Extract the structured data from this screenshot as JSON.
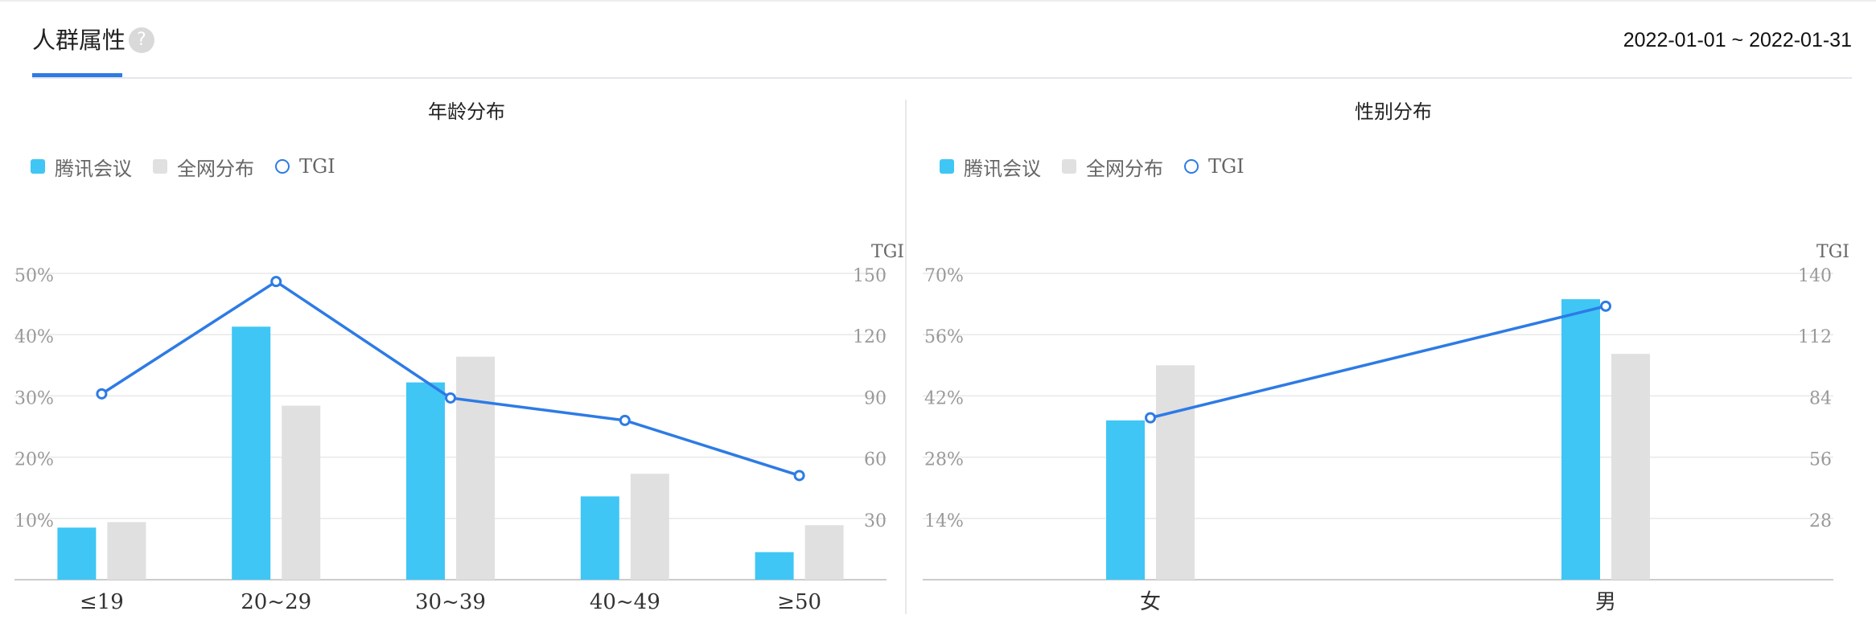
{
  "header": {
    "title": "人群属性",
    "help_icon": "?",
    "date_range": "2022-01-01 ~ 2022-01-31"
  },
  "colors": {
    "primary": "#3fc6f5",
    "secondary": "#e0e0e0",
    "tgi": "#2d7be5"
  },
  "chart_data": [
    {
      "type": "bar",
      "title": "年龄分布",
      "legend": [
        "腾讯会议",
        "全网分布",
        "TGI"
      ],
      "categories": [
        "≤19",
        "20~29",
        "30~39",
        "40~49",
        "≥50"
      ],
      "series": [
        {
          "name": "腾讯会议",
          "type": "bar",
          "values": [
            8.5,
            41.3,
            32.2,
            13.6,
            4.5
          ]
        },
        {
          "name": "全网分布",
          "type": "bar",
          "values": [
            9.4,
            28.4,
            36.4,
            17.3,
            8.9
          ]
        },
        {
          "name": "TGI",
          "type": "line",
          "axis": "right",
          "values": [
            91,
            146,
            89,
            78,
            51
          ]
        }
      ],
      "y_left": {
        "min": 0,
        "max": 50,
        "ticks": [
          "50%",
          "40%",
          "30%",
          "20%",
          "10%"
        ]
      },
      "y_right": {
        "min": 0,
        "max": 150,
        "label": "TGI",
        "ticks": [
          "150",
          "120",
          "90",
          "60",
          "30"
        ]
      }
    },
    {
      "type": "bar",
      "title": "性别分布",
      "legend": [
        "腾讯会议",
        "全网分布",
        "TGI"
      ],
      "categories": [
        "女",
        "男"
      ],
      "series": [
        {
          "name": "腾讯会议",
          "type": "bar",
          "values": [
            36.4,
            64.1
          ]
        },
        {
          "name": "全网分布",
          "type": "bar",
          "values": [
            49.0,
            51.6
          ]
        },
        {
          "name": "TGI",
          "type": "line",
          "axis": "right",
          "values": [
            74,
            125
          ]
        }
      ],
      "y_left": {
        "min": 0,
        "max": 70,
        "ticks": [
          "70%",
          "56%",
          "42%",
          "28%",
          "14%"
        ]
      },
      "y_right": {
        "min": 0,
        "max": 140,
        "label": "TGI",
        "ticks": [
          "140",
          "112",
          "84",
          "56",
          "28"
        ]
      }
    }
  ]
}
